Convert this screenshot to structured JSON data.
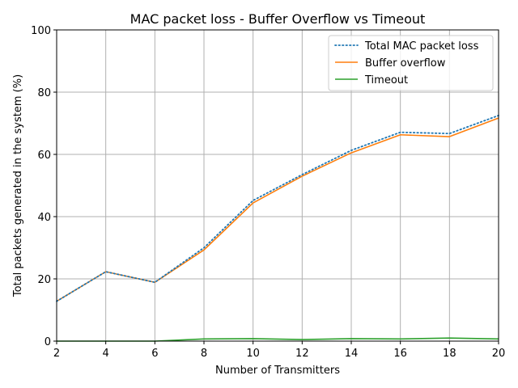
{
  "chart_data": {
    "type": "line",
    "title": "MAC packet loss - Buffer Overflow vs Timeout",
    "xlabel": "Number of Transmitters",
    "ylabel": "Total packets generated in the system (%)",
    "x": [
      2,
      4,
      6,
      8,
      10,
      12,
      14,
      16,
      18,
      20
    ],
    "xlim": [
      2,
      20
    ],
    "ylim": [
      0,
      100
    ],
    "xticks": [
      2,
      4,
      6,
      8,
      10,
      12,
      14,
      16,
      18,
      20
    ],
    "yticks": [
      0,
      20,
      40,
      60,
      80,
      100
    ],
    "grid": true,
    "legend_position": "top-right",
    "series": [
      {
        "name": "Total MAC packet loss",
        "color": "#1f77b4",
        "style": "dotted",
        "values": [
          12.8,
          22.3,
          18.9,
          30.0,
          45.2,
          53.5,
          61.3,
          67.1,
          66.7,
          72.5
        ]
      },
      {
        "name": "Buffer overflow",
        "color": "#ff7f0e",
        "style": "solid",
        "values": [
          12.8,
          22.3,
          18.9,
          29.3,
          44.4,
          53.0,
          60.5,
          66.3,
          65.7,
          71.7
        ]
      },
      {
        "name": "Timeout",
        "color": "#2ca02c",
        "style": "solid",
        "values": [
          0.0,
          0.0,
          0.0,
          0.7,
          0.8,
          0.5,
          0.8,
          0.7,
          1.0,
          0.7
        ]
      }
    ]
  }
}
